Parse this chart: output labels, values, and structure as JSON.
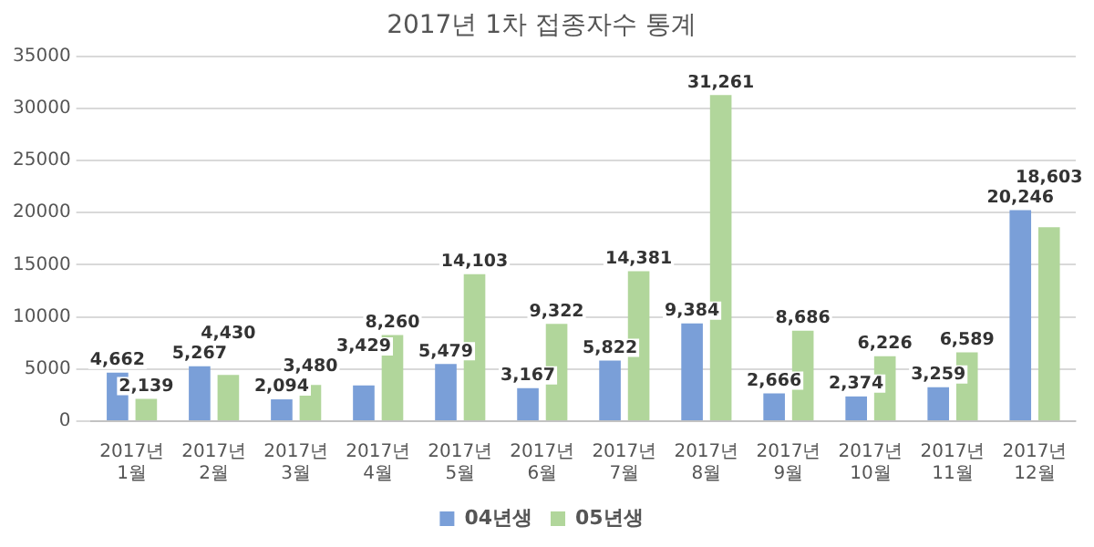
{
  "chart_data": {
    "type": "bar",
    "title": "2017년 1차 접종자수 통계",
    "categories": [
      "2017년 1월",
      "2017년 2월",
      "2017년 3월",
      "2017년 4월",
      "2017년 5월",
      "2017년 6월",
      "2017년 7월",
      "2017년 8월",
      "2017년 9월",
      "2017년 10월",
      "2017년 11월",
      "2017년 12월"
    ],
    "series": [
      {
        "name": "04년생",
        "color": "#7a9fd8",
        "values": [
          4662,
          5267,
          2094,
          3429,
          5479,
          3167,
          5822,
          9384,
          2666,
          2374,
          3259,
          20246
        ],
        "value_labels": [
          "4,662",
          "5,267",
          "2,094",
          "3,429",
          "5,479",
          "3,167",
          "5,822",
          "9,384",
          "2,666",
          "2,374",
          "3,259",
          "20,246"
        ]
      },
      {
        "name": "05년생",
        "color": "#b1d69b",
        "values": [
          2139,
          4430,
          3480,
          8260,
          14103,
          9322,
          14381,
          31261,
          8686,
          6226,
          6589,
          18603
        ],
        "value_labels": [
          "2,139",
          "4,430",
          "3,480",
          "8,260",
          "14,103",
          "9,322",
          "14,381",
          "31,261",
          "8,686",
          "6,226",
          "6,589",
          "18,603"
        ]
      }
    ],
    "ylim": [
      0,
      35000
    ],
    "yticks": [
      0,
      5000,
      10000,
      15000,
      20000,
      25000,
      30000,
      35000
    ],
    "grid": "y",
    "legend": "bottom"
  }
}
